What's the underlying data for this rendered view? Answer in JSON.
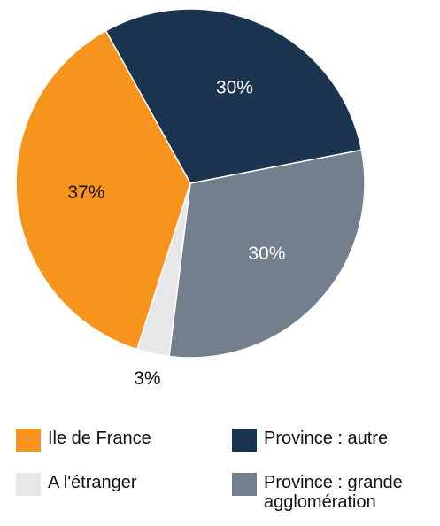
{
  "chart_data": {
    "type": "pie",
    "categories": [
      "Province : autre",
      "Province : grande agglomération",
      "A l'étranger",
      "Ile de France"
    ],
    "values": [
      30,
      30,
      3,
      37
    ],
    "value_labels": [
      "30%",
      "30%",
      "3%",
      "37%"
    ],
    "colors": [
      "#1b3550",
      "#737f8c",
      "#e6e7e8",
      "#f7941d"
    ]
  }
}
